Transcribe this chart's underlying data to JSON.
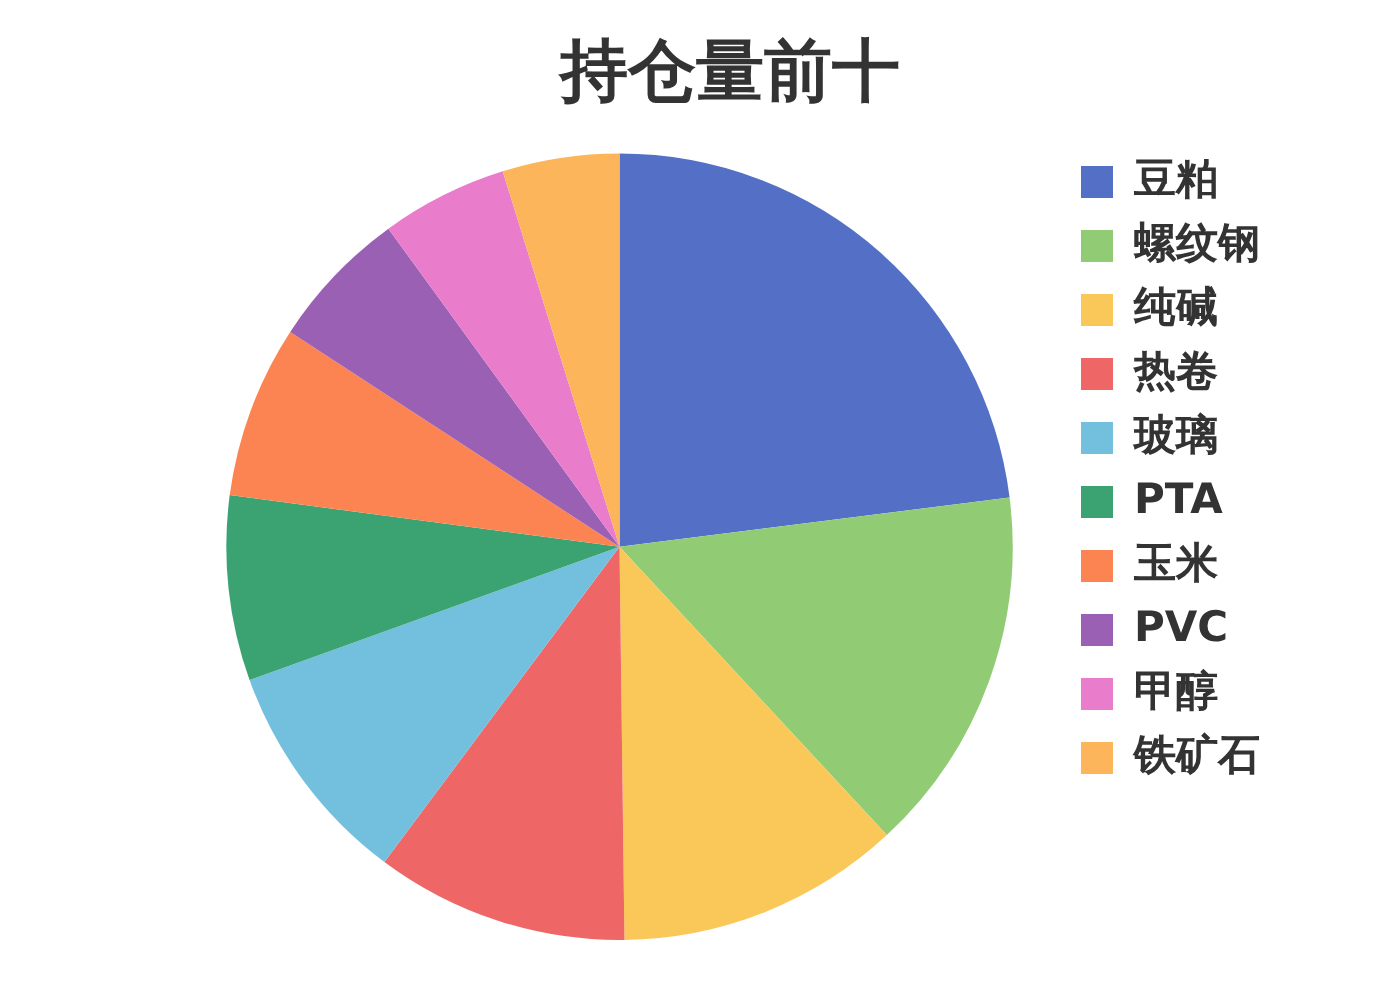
{
  "chart_data": {
    "type": "pie",
    "title": "持仓量前十",
    "categories": [
      "豆粕",
      "螺纹钢",
      "纯碱",
      "热卷",
      "玻璃",
      "PTA",
      "玉米",
      "PVC",
      "甲醇",
      "铁矿石"
    ],
    "values": [
      23.0,
      15.1,
      11.7,
      10.4,
      9.3,
      7.6,
      7.1,
      5.8,
      5.2,
      4.8
    ],
    "colors": [
      "#5470c6",
      "#91cc75",
      "#fac858",
      "#ee6666",
      "#73c0de",
      "#3ba272",
      "#fc8452",
      "#9a60b4",
      "#ea7ccc",
      "#fcb55a"
    ],
    "legend": "right"
  }
}
